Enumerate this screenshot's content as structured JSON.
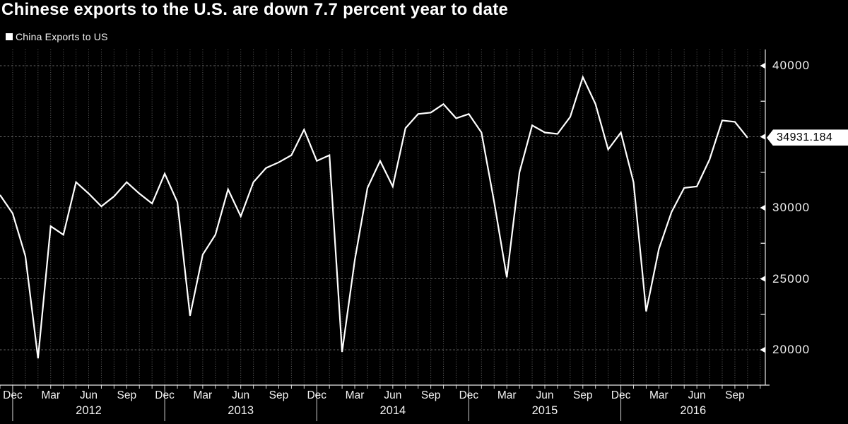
{
  "title": "Chinese exports to the U.S. are down 7.7 percent year to date",
  "legend": {
    "label": "China Exports to US"
  },
  "current_value_label": "34931.184",
  "colors": {
    "background": "#000000",
    "line": "#ffffff",
    "grid": "#aaaaaa",
    "axis": "#e8e8e8",
    "text": "#f2f2f2",
    "value_tag_bg": "#ffffff",
    "value_tag_text": "#000000"
  },
  "chart_data": {
    "type": "line",
    "title": "Chinese exports to the U.S. are down 7.7 percent year to date",
    "legend_entries": [
      "China Exports to US"
    ],
    "legend_position": "top-left",
    "grid": true,
    "x": [
      "Nov 2011",
      "Dec 2011",
      "Jan 2012",
      "Feb 2012",
      "Mar 2012",
      "Apr 2012",
      "May 2012",
      "Jun 2012",
      "Jul 2012",
      "Aug 2012",
      "Sep 2012",
      "Oct 2012",
      "Nov 2012",
      "Dec 2012",
      "Jan 2013",
      "Feb 2013",
      "Mar 2013",
      "Apr 2013",
      "May 2013",
      "Jun 2013",
      "Jul 2013",
      "Aug 2013",
      "Sep 2013",
      "Oct 2013",
      "Nov 2013",
      "Dec 2013",
      "Jan 2014",
      "Feb 2014",
      "Mar 2014",
      "Apr 2014",
      "May 2014",
      "Jun 2014",
      "Jul 2014",
      "Aug 2014",
      "Sep 2014",
      "Oct 2014",
      "Nov 2014",
      "Dec 2014",
      "Jan 2015",
      "Feb 2015",
      "Mar 2015",
      "Apr 2015",
      "May 2015",
      "Jun 2015",
      "Jul 2015",
      "Aug 2015",
      "Sep 2015",
      "Oct 2015",
      "Nov 2015",
      "Dec 2015",
      "Jan 2016",
      "Feb 2016",
      "Mar 2016",
      "Apr 2016",
      "May 2016",
      "Jun 2016",
      "Jul 2016",
      "Aug 2016",
      "Sep 2016",
      "Oct 2016"
    ],
    "series": [
      {
        "name": "China Exports to US",
        "values": [
          30900,
          29600,
          26600,
          19400,
          28700,
          28100,
          31800,
          31000,
          30100,
          30800,
          31800,
          31000,
          30300,
          32400,
          30400,
          22400,
          26700,
          28100,
          31300,
          29400,
          31800,
          32800,
          33200,
          33700,
          35500,
          33300,
          33700,
          19850,
          26300,
          31400,
          33300,
          31500,
          35600,
          36600,
          36700,
          37300,
          36300,
          36600,
          35300,
          30400,
          25100,
          32500,
          35800,
          35300,
          35200,
          36400,
          39200,
          37300,
          34100,
          35300,
          31800,
          22700,
          27100,
          29700,
          31400,
          31500,
          33400,
          36150,
          36050,
          34931.184
        ]
      }
    ],
    "last_value": 34931.184,
    "last_value_label": "34931.184",
    "y_axis": {
      "side": "right",
      "visible_tick_labels": [
        {
          "value": 40000,
          "label": "40000"
        },
        {
          "value": 30000,
          "label": "30000"
        },
        {
          "value": 25000,
          "label": "25000"
        },
        {
          "value": 20000,
          "label": "20000"
        }
      ],
      "gridline_values": [
        40000,
        35000,
        30000,
        25000,
        20000
      ],
      "minor_tick_values": [
        37500,
        32500,
        27500,
        22500
      ],
      "range": [
        17520,
        41150
      ]
    },
    "x_axis": {
      "month_tick_labels": [
        "Dec",
        "Mar",
        "Jun",
        "Sep",
        "Dec",
        "Mar",
        "Jun",
        "Sep",
        "Dec",
        "Mar",
        "Jun",
        "Sep",
        "Dec",
        "Mar",
        "Jun",
        "Sep",
        "Dec",
        "Mar",
        "Jun",
        "Sep"
      ],
      "month_tick_indices": [
        1,
        4,
        7,
        10,
        13,
        16,
        19,
        22,
        25,
        28,
        31,
        34,
        37,
        40,
        43,
        46,
        49,
        52,
        55,
        58
      ],
      "year_labels": [
        "2012",
        "2013",
        "2014",
        "2015",
        "2016"
      ],
      "year_divider_indices": [
        1,
        13,
        25,
        37,
        49
      ]
    }
  }
}
